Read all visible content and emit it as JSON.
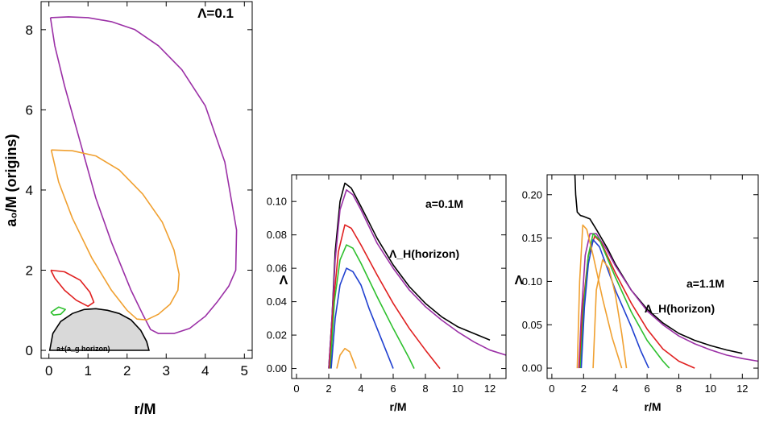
{
  "chart_data": [
    {
      "type": "line",
      "panel": "left",
      "title": "Λ=0.1",
      "xlabel": "r/M",
      "ylabel": "a₀/M (origins)",
      "xlim": [
        -0.2,
        5.2
      ],
      "ylim": [
        -0.2,
        8.7
      ],
      "xticks": [
        0,
        1,
        2,
        3,
        4,
        5
      ],
      "yticks": [
        0,
        2,
        4,
        6,
        8
      ],
      "horizon_label": "a±(a_g horizon)",
      "horizon": {
        "color": "#d9d9d9",
        "points": [
          [
            0.02,
            0
          ],
          [
            0.1,
            0.42
          ],
          [
            0.3,
            0.72
          ],
          [
            0.6,
            0.92
          ],
          [
            0.9,
            1.02
          ],
          [
            1.2,
            1.04
          ],
          [
            1.5,
            1.0
          ],
          [
            1.8,
            0.92
          ],
          [
            2.1,
            0.76
          ],
          [
            2.35,
            0.5
          ],
          [
            2.5,
            0.22
          ],
          [
            2.56,
            0
          ]
        ]
      },
      "series": [
        {
          "color": "#9b30a6",
          "points": [
            [
              0.04,
              8.3
            ],
            [
              0.5,
              8.32
            ],
            [
              1.0,
              8.3
            ],
            [
              1.6,
              8.2
            ],
            [
              2.2,
              8.0
            ],
            [
              2.8,
              7.6
            ],
            [
              3.4,
              7.0
            ],
            [
              4.0,
              6.1
            ],
            [
              4.5,
              4.7
            ],
            [
              4.8,
              3.0
            ],
            [
              4.78,
              2.0
            ],
            [
              4.6,
              1.6
            ],
            [
              4.3,
              1.2
            ],
            [
              4.0,
              0.85
            ],
            [
              3.6,
              0.55
            ],
            [
              3.2,
              0.42
            ],
            [
              2.8,
              0.42
            ],
            [
              2.6,
              0.52
            ],
            [
              2.4,
              0.9
            ],
            [
              2.1,
              1.5
            ],
            [
              1.6,
              2.7
            ],
            [
              1.2,
              3.8
            ],
            [
              0.8,
              5.2
            ],
            [
              0.4,
              6.6
            ],
            [
              0.15,
              7.6
            ],
            [
              0.04,
              8.3
            ]
          ]
        },
        {
          "color": "#f0a030",
          "points": [
            [
              0.06,
              5.0
            ],
            [
              0.6,
              4.98
            ],
            [
              1.2,
              4.85
            ],
            [
              1.8,
              4.5
            ],
            [
              2.4,
              3.9
            ],
            [
              2.9,
              3.2
            ],
            [
              3.2,
              2.5
            ],
            [
              3.33,
              1.9
            ],
            [
              3.3,
              1.5
            ],
            [
              3.1,
              1.15
            ],
            [
              2.8,
              0.9
            ],
            [
              2.5,
              0.76
            ],
            [
              2.25,
              0.78
            ],
            [
              2.0,
              1.0
            ],
            [
              1.6,
              1.5
            ],
            [
              1.1,
              2.3
            ],
            [
              0.6,
              3.3
            ],
            [
              0.25,
              4.2
            ],
            [
              0.06,
              5.0
            ]
          ]
        },
        {
          "color": "#e02020",
          "points": [
            [
              0.05,
              2.0
            ],
            [
              0.4,
              1.96
            ],
            [
              0.8,
              1.75
            ],
            [
              1.05,
              1.45
            ],
            [
              1.15,
              1.2
            ],
            [
              1.0,
              1.1
            ],
            [
              0.7,
              1.25
            ],
            [
              0.4,
              1.5
            ],
            [
              0.15,
              1.8
            ],
            [
              0.05,
              2.0
            ]
          ]
        },
        {
          "color": "#2ec02e",
          "points": [
            [
              0.05,
              0.95
            ],
            [
              0.25,
              1.08
            ],
            [
              0.42,
              1.02
            ],
            [
              0.3,
              0.9
            ],
            [
              0.12,
              0.88
            ],
            [
              0.05,
              0.95
            ]
          ]
        }
      ]
    },
    {
      "type": "line",
      "panel": "middle",
      "annotation": "a=0.1M",
      "curve_label": "Λ_H(horizon)",
      "xlabel": "r/M",
      "ylabel": "Λ",
      "xlim": [
        -0.3,
        13
      ],
      "ylim": [
        -0.006,
        0.116
      ],
      "xticks": [
        0,
        2,
        4,
        6,
        8,
        10,
        12
      ],
      "yticks": [
        "0.00",
        "0.02",
        "0.04",
        "0.06",
        "0.08",
        "0.10"
      ],
      "series": [
        {
          "color": "#000000",
          "points": [
            [
              2.0,
              0
            ],
            [
              2.2,
              0.03
            ],
            [
              2.4,
              0.07
            ],
            [
              2.7,
              0.1
            ],
            [
              3.0,
              0.111
            ],
            [
              3.4,
              0.108
            ],
            [
              4.0,
              0.097
            ],
            [
              5.0,
              0.078
            ],
            [
              6.0,
              0.062
            ],
            [
              7.0,
              0.049
            ],
            [
              8.0,
              0.039
            ],
            [
              9.0,
              0.031
            ],
            [
              10.0,
              0.025
            ],
            [
              11.0,
              0.021
            ],
            [
              12.0,
              0.017
            ]
          ]
        },
        {
          "color": "#9b30a6",
          "points": [
            [
              2.0,
              0
            ],
            [
              2.2,
              0.03
            ],
            [
              2.4,
              0.065
            ],
            [
              2.7,
              0.095
            ],
            [
              3.1,
              0.107
            ],
            [
              3.5,
              0.104
            ],
            [
              4.0,
              0.095
            ],
            [
              5.0,
              0.075
            ],
            [
              6.0,
              0.06
            ],
            [
              7.0,
              0.047
            ],
            [
              8.0,
              0.037
            ],
            [
              9.0,
              0.029
            ],
            [
              10.0,
              0.022
            ],
            [
              11.0,
              0.016
            ],
            [
              12.0,
              0.011
            ],
            [
              13.0,
              0.008
            ]
          ]
        },
        {
          "color": "#e02020",
          "points": [
            [
              2.05,
              0
            ],
            [
              2.3,
              0.04
            ],
            [
              2.6,
              0.07
            ],
            [
              3.0,
              0.086
            ],
            [
              3.4,
              0.084
            ],
            [
              4.0,
              0.074
            ],
            [
              5.0,
              0.056
            ],
            [
              6.0,
              0.039
            ],
            [
              7.0,
              0.024
            ],
            [
              8.0,
              0.011
            ],
            [
              8.9,
              0
            ]
          ]
        },
        {
          "color": "#2ec02e",
          "points": [
            [
              2.1,
              0
            ],
            [
              2.35,
              0.04
            ],
            [
              2.7,
              0.065
            ],
            [
              3.1,
              0.074
            ],
            [
              3.5,
              0.072
            ],
            [
              4.0,
              0.063
            ],
            [
              5.0,
              0.043
            ],
            [
              6.0,
              0.024
            ],
            [
              7.0,
              0.006
            ],
            [
              7.3,
              0
            ]
          ]
        },
        {
          "color": "#2040d0",
          "points": [
            [
              2.15,
              0
            ],
            [
              2.4,
              0.03
            ],
            [
              2.7,
              0.05
            ],
            [
              3.1,
              0.06
            ],
            [
              3.5,
              0.058
            ],
            [
              4.0,
              0.05
            ],
            [
              4.5,
              0.036
            ],
            [
              5.0,
              0.024
            ],
            [
              5.5,
              0.012
            ],
            [
              6.0,
              0
            ]
          ]
        },
        {
          "color": "#f0a030",
          "points": [
            [
              2.5,
              0
            ],
            [
              2.7,
              0.008
            ],
            [
              3.0,
              0.012
            ],
            [
              3.3,
              0.01
            ],
            [
              3.5,
              0.005
            ],
            [
              3.7,
              0
            ]
          ]
        }
      ]
    },
    {
      "type": "line",
      "panel": "right",
      "annotation": "a=1.1M",
      "curve_label": "Λ_H(horizon)",
      "xlabel": "r/M",
      "ylabel": "Λ",
      "xlim": [
        -0.3,
        13
      ],
      "ylim": [
        -0.012,
        0.223
      ],
      "xticks": [
        0,
        2,
        4,
        6,
        8,
        10,
        12
      ],
      "yticks": [
        "0.00",
        "0.05",
        "0.10",
        "0.15",
        "0.20"
      ],
      "series": [
        {
          "color": "#000000",
          "points": [
            [
              1.45,
              0.223
            ],
            [
              1.5,
              0.2
            ],
            [
              1.6,
              0.18
            ],
            [
              1.8,
              0.176
            ],
            [
              2.0,
              0.175
            ],
            [
              2.4,
              0.172
            ],
            [
              2.8,
              0.16
            ],
            [
              3.5,
              0.138
            ],
            [
              4.0,
              0.12
            ],
            [
              5.0,
              0.09
            ],
            [
              6.0,
              0.068
            ],
            [
              7.0,
              0.052
            ],
            [
              8.0,
              0.04
            ],
            [
              9.0,
              0.032
            ],
            [
              10.0,
              0.026
            ],
            [
              11.0,
              0.021
            ],
            [
              12.0,
              0.017
            ]
          ]
        },
        {
          "color": "#9b30a6",
          "points": [
            [
              1.7,
              0
            ],
            [
              1.85,
              0.06
            ],
            [
              2.1,
              0.13
            ],
            [
              2.4,
              0.155
            ],
            [
              2.8,
              0.155
            ],
            [
              3.5,
              0.135
            ],
            [
              4.0,
              0.118
            ],
            [
              5.0,
              0.09
            ],
            [
              6.0,
              0.066
            ],
            [
              7.0,
              0.05
            ],
            [
              8.0,
              0.037
            ],
            [
              9.0,
              0.028
            ],
            [
              10.0,
              0.021
            ],
            [
              11.0,
              0.015
            ],
            [
              12.0,
              0.011
            ],
            [
              13.0,
              0.008
            ]
          ]
        },
        {
          "color": "#e02020",
          "points": [
            [
              1.75,
              0
            ],
            [
              1.95,
              0.07
            ],
            [
              2.3,
              0.13
            ],
            [
              2.7,
              0.152
            ],
            [
              3.1,
              0.145
            ],
            [
              4.0,
              0.11
            ],
            [
              5.0,
              0.075
            ],
            [
              6.0,
              0.045
            ],
            [
              7.0,
              0.022
            ],
            [
              8.0,
              0.008
            ],
            [
              9.0,
              0
            ]
          ]
        },
        {
          "color": "#2ec02e",
          "points": [
            [
              1.8,
              0
            ],
            [
              2.0,
              0.07
            ],
            [
              2.3,
              0.13
            ],
            [
              2.6,
              0.155
            ],
            [
              3.0,
              0.148
            ],
            [
              4.0,
              0.105
            ],
            [
              5.0,
              0.065
            ],
            [
              6.0,
              0.032
            ],
            [
              7.0,
              0.008
            ],
            [
              7.4,
              0
            ]
          ]
        },
        {
          "color": "#2040d0",
          "points": [
            [
              1.85,
              0
            ],
            [
              2.05,
              0.07
            ],
            [
              2.3,
              0.12
            ],
            [
              2.6,
              0.148
            ],
            [
              3.0,
              0.14
            ],
            [
              4.0,
              0.09
            ],
            [
              5.0,
              0.048
            ],
            [
              5.6,
              0.02
            ],
            [
              6.1,
              0
            ]
          ]
        },
        {
          "color": "#f0a030",
          "points": [
            [
              1.6,
              0
            ],
            [
              1.75,
              0.1
            ],
            [
              1.95,
              0.165
            ],
            [
              2.2,
              0.16
            ],
            [
              2.6,
              0.13
            ],
            [
              3.2,
              0.08
            ],
            [
              3.8,
              0.035
            ],
            [
              4.4,
              0
            ]
          ]
        },
        {
          "color": "#f0a030",
          "points": [
            [
              2.6,
              0
            ],
            [
              2.8,
              0.09
            ],
            [
              3.2,
              0.125
            ],
            [
              3.6,
              0.115
            ],
            [
              4.0,
              0.085
            ],
            [
              4.4,
              0.04
            ],
            [
              4.7,
              0
            ]
          ]
        }
      ]
    }
  ]
}
